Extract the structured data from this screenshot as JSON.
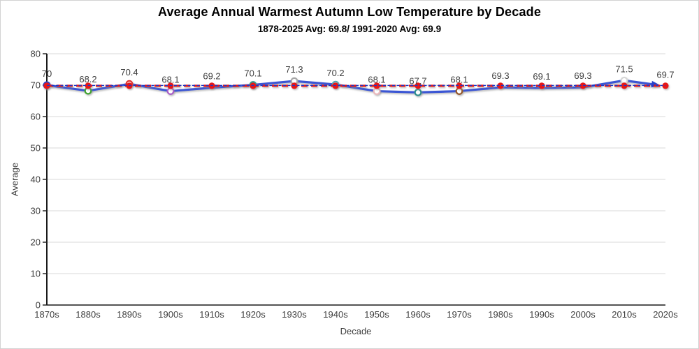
{
  "chart": {
    "title": "Average Annual Warmest Autumn Low Temperature by Decade",
    "subtitle": "1878-2025 Avg: 69.8/ 1991-2020 Avg: 69.9",
    "xlabel": "Decade",
    "ylabel": "Average"
  },
  "chart_data": {
    "type": "line",
    "title": "Average Annual Warmest Autumn Low Temperature by Decade",
    "subtitle": "1878-2025 Avg: 69.8/ 1991-2020 Avg: 69.9",
    "xlabel": "Decade",
    "ylabel": "Average",
    "categories": [
      "1870s",
      "1880s",
      "1890s",
      "1900s",
      "1910s",
      "1920s",
      "1930s",
      "1940s",
      "1950s",
      "1960s",
      "1970s",
      "1980s",
      "1990s",
      "2000s",
      "2010s",
      "2020s"
    ],
    "ylim": [
      0,
      80
    ],
    "yticks": [
      0,
      10,
      20,
      30,
      40,
      50,
      60,
      70,
      80
    ],
    "grid": "horizontal",
    "legend_position": "none",
    "series": [
      {
        "name": "decade-average",
        "type": "line-with-markers-and-end-arrow",
        "color": "#3a56d4",
        "cap_color": "#2742cb",
        "values": [
          70,
          68.2,
          70.4,
          68.1,
          69.2,
          70.1,
          71.3,
          70.2,
          68.1,
          67.7,
          68.1,
          69.3,
          69.1,
          69.3,
          71.5,
          69.7
        ],
        "labels": [
          "70",
          "68.2",
          "70.4",
          "68.1",
          "69.2",
          "70.1",
          "71.3",
          "70.2",
          "68.1",
          "67.7",
          "68.1",
          "69.3",
          "69.1",
          "69.3",
          "71.5",
          "69.7"
        ],
        "marker_colors": [
          null,
          "#3fa32e",
          "#e0312e",
          "#a95dc9",
          null,
          "#2f9e8e",
          "#a6a6a6",
          "#53a7b5",
          "#eab8bc",
          "#2f8e8e",
          "#96582a",
          null,
          null,
          null,
          "#d6d6d6",
          null
        ]
      },
      {
        "name": "avg-1878-2025",
        "type": "dashed-line-with-markers",
        "color": "#e81416",
        "value": 69.8
      },
      {
        "name": "avg-1991-2020",
        "type": "thin-dashed-line",
        "color": "#2337c6",
        "value": 69.9
      }
    ],
    "colors": {
      "gridline": "#d9d9d9",
      "axis": "#1a1a1a",
      "tick_label": "#3f3f3f",
      "data_label": "#3f3f3f"
    }
  }
}
